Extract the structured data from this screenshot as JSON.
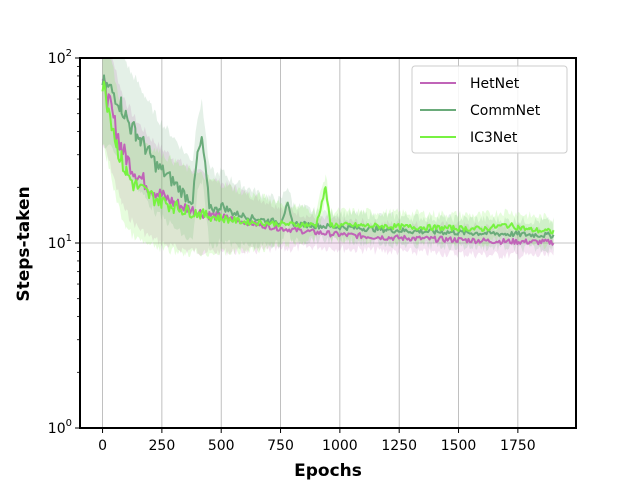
{
  "chart_data": {
    "type": "line",
    "title": "",
    "xlabel": "Epochs",
    "ylabel": "Steps-taken",
    "xlim": [
      -95,
      1995
    ],
    "ylim": [
      1,
      100
    ],
    "yscale": "log",
    "grid": true,
    "legend_position": "top-right",
    "x_ticks": [
      {
        "value": 0,
        "label": "0"
      },
      {
        "value": 250,
        "label": "250"
      },
      {
        "value": 500,
        "label": "500"
      },
      {
        "value": 750,
        "label": "750"
      },
      {
        "value": 1000,
        "label": "1000"
      },
      {
        "value": 1250,
        "label": "1250"
      },
      {
        "value": 1500,
        "label": "1500"
      },
      {
        "value": 1750,
        "label": "1750"
      }
    ],
    "y_ticks": [
      {
        "value": 1,
        "base": "10",
        "exp": "0"
      },
      {
        "value": 10,
        "base": "10",
        "exp": "1"
      },
      {
        "value": 100,
        "base": "10",
        "exp": "2"
      }
    ],
    "series": [
      {
        "name": "HetNet",
        "color": "#c064b8",
        "x": [
          0,
          20,
          40,
          60,
          80,
          100,
          130,
          160,
          200,
          250,
          300,
          350,
          400,
          450,
          500,
          550,
          600,
          650,
          700,
          750,
          800,
          900,
          1000,
          1100,
          1200,
          1300,
          1400,
          1500,
          1600,
          1700,
          1800,
          1900
        ],
        "y": [
          72,
          62,
          50,
          40,
          33,
          29,
          25,
          22.5,
          20,
          18,
          16.5,
          15.5,
          14.8,
          14.2,
          13.8,
          13.4,
          13.0,
          12.6,
          12.3,
          12.0,
          11.8,
          11.4,
          11.1,
          10.9,
          10.7,
          10.6,
          10.5,
          10.4,
          10.3,
          10.2,
          10.15,
          10.1
        ]
      },
      {
        "name": "CommNet",
        "color": "#6aab7a",
        "x": [
          0,
          30,
          60,
          80,
          100,
          120,
          140,
          160,
          180,
          200,
          230,
          260,
          290,
          320,
          350,
          380,
          400,
          420,
          450,
          480,
          500,
          550,
          600,
          650,
          700,
          750,
          780,
          800,
          850,
          900,
          1000,
          1100,
          1200,
          1300,
          1400,
          1500,
          1600,
          1700,
          1800,
          1900
        ],
        "y": [
          72,
          68,
          62,
          55,
          48,
          42,
          40,
          36,
          33,
          30,
          26,
          24,
          22,
          20,
          18,
          17,
          30,
          36,
          16,
          15,
          16,
          14.5,
          14,
          13.5,
          13.2,
          13.0,
          16,
          12.8,
          12.6,
          12.4,
          12.2,
          12.0,
          11.8,
          11.6,
          11.5,
          11.4,
          11.3,
          11.2,
          11.1,
          11.0
        ]
      },
      {
        "name": "IC3Net",
        "color": "#77f241",
        "x": [
          0,
          20,
          40,
          60,
          80,
          100,
          130,
          160,
          200,
          250,
          300,
          350,
          400,
          450,
          500,
          550,
          600,
          700,
          800,
          900,
          940,
          960,
          1000,
          1100,
          1200,
          1300,
          1400,
          1500,
          1600,
          1700,
          1750,
          1800,
          1900
        ],
        "y": [
          72,
          58,
          45,
          34,
          28,
          24,
          21,
          19.5,
          18,
          16.8,
          15.8,
          15.0,
          14.5,
          14.0,
          13.6,
          13.3,
          13.0,
          12.8,
          12.6,
          12.5,
          20,
          12.5,
          12.5,
          12.4,
          12.3,
          12.2,
          12.1,
          12.0,
          11.9,
          12.5,
          12.2,
          11.8,
          11.5
        ]
      }
    ]
  }
}
